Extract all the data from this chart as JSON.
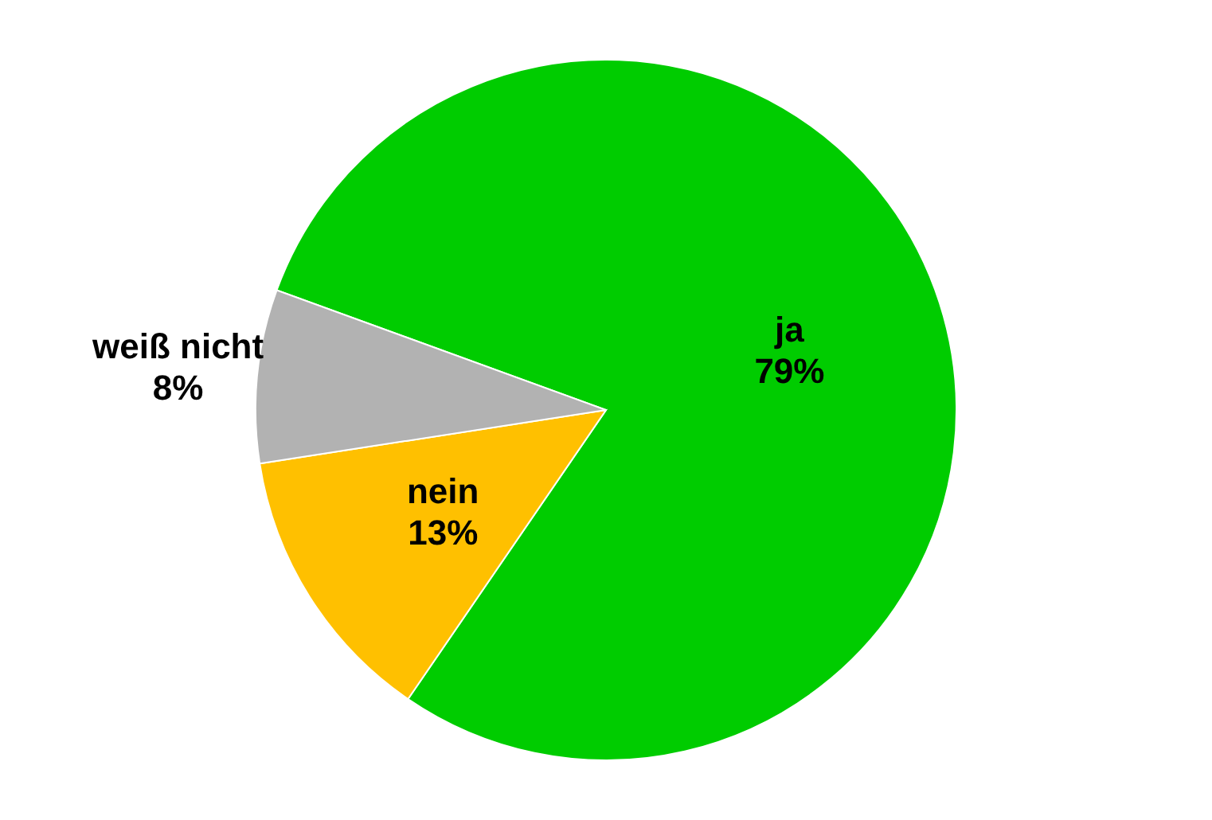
{
  "chart_data": {
    "type": "pie",
    "categories": [
      "ja",
      "nein",
      "weiß nicht"
    ],
    "values": [
      79,
      13,
      8
    ],
    "colors": [
      "#00cc00",
      "#ffc000",
      "#b2b2b2"
    ],
    "value_labels": [
      "79%",
      "13%",
      "8%"
    ],
    "legend": false
  }
}
